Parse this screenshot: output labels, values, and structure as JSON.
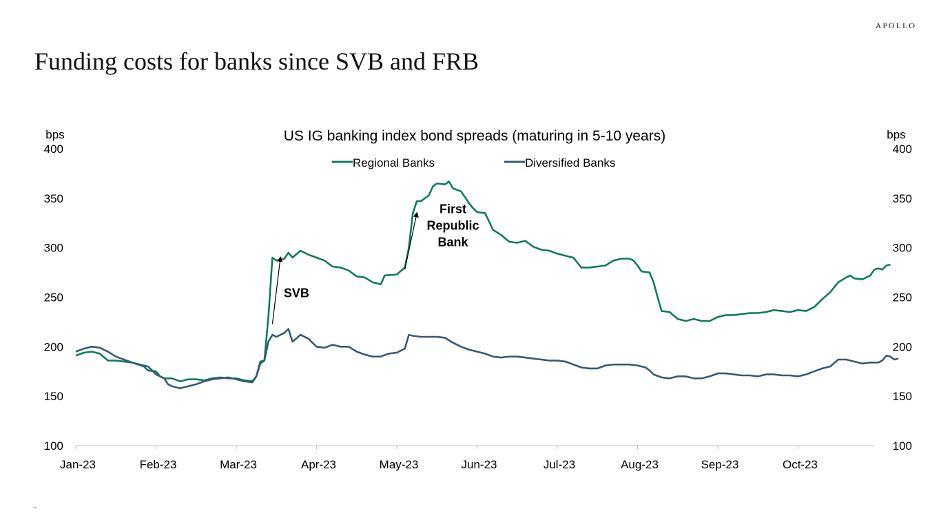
{
  "brand": "APOLLO",
  "page_title": "Funding costs for banks since SVB and FRB",
  "colors": {
    "regional": "#0e7a5f",
    "diversified": "#355a73"
  },
  "chart_data": {
    "type": "line",
    "title": "US IG banking index bond spreads  (maturing in 5-10 years)",
    "ylabel_left": "bps",
    "ylabel_right": "bps",
    "ylim": [
      100,
      400
    ],
    "yticks": [
      100,
      150,
      200,
      250,
      300,
      350,
      400
    ],
    "xlim": [
      0,
      9.95
    ],
    "xticks": [
      {
        "label": "Jan-23",
        "pos": 0
      },
      {
        "label": "Feb-23",
        "pos": 1
      },
      {
        "label": "Mar-23",
        "pos": 2
      },
      {
        "label": "Apr-23",
        "pos": 3
      },
      {
        "label": "May-23",
        "pos": 4
      },
      {
        "label": "Jun-23",
        "pos": 5
      },
      {
        "label": "Jul-23",
        "pos": 6
      },
      {
        "label": "Aug-23",
        "pos": 7
      },
      {
        "label": "Sep-23",
        "pos": 8
      },
      {
        "label": "Oct-23",
        "pos": 9
      }
    ],
    "legend": "top-center",
    "grid": false,
    "series": [
      {
        "name": "Regional Banks",
        "points": [
          [
            0,
            191
          ],
          [
            0.1,
            194
          ],
          [
            0.2,
            195
          ],
          [
            0.3,
            193
          ],
          [
            0.4,
            186
          ],
          [
            0.5,
            186
          ],
          [
            0.6,
            185
          ],
          [
            0.7,
            184
          ],
          [
            0.85,
            180
          ],
          [
            0.9,
            176
          ],
          [
            1.0,
            175
          ],
          [
            1.05,
            170
          ],
          [
            1.1,
            168
          ],
          [
            1.2,
            168
          ],
          [
            1.3,
            165
          ],
          [
            1.4,
            167
          ],
          [
            1.5,
            167
          ],
          [
            1.6,
            166
          ],
          [
            1.7,
            168
          ],
          [
            1.8,
            169
          ],
          [
            1.9,
            168
          ],
          [
            2.0,
            168
          ],
          [
            2.1,
            166
          ],
          [
            2.2,
            165
          ],
          [
            2.25,
            170
          ],
          [
            2.3,
            185
          ],
          [
            2.35,
            186
          ],
          [
            2.4,
            230
          ],
          [
            2.45,
            290
          ],
          [
            2.5,
            287
          ],
          [
            2.6,
            289
          ],
          [
            2.65,
            295
          ],
          [
            2.7,
            290
          ],
          [
            2.8,
            297
          ],
          [
            2.9,
            293
          ],
          [
            3.0,
            290
          ],
          [
            3.1,
            287
          ],
          [
            3.2,
            281
          ],
          [
            3.3,
            280
          ],
          [
            3.4,
            277
          ],
          [
            3.5,
            271
          ],
          [
            3.6,
            270
          ],
          [
            3.7,
            265
          ],
          [
            3.8,
            263
          ],
          [
            3.85,
            272
          ],
          [
            4.0,
            273
          ],
          [
            4.1,
            280
          ],
          [
            4.15,
            300
          ],
          [
            4.2,
            335
          ],
          [
            4.25,
            347
          ],
          [
            4.3,
            347
          ],
          [
            4.4,
            353
          ],
          [
            4.45,
            362
          ],
          [
            4.5,
            365
          ],
          [
            4.6,
            364
          ],
          [
            4.65,
            367
          ],
          [
            4.7,
            360
          ],
          [
            4.8,
            357
          ],
          [
            4.9,
            345
          ],
          [
            4.95,
            340
          ],
          [
            5.0,
            336
          ],
          [
            5.1,
            335
          ],
          [
            5.2,
            318
          ],
          [
            5.3,
            313
          ],
          [
            5.4,
            306
          ],
          [
            5.5,
            305
          ],
          [
            5.6,
            307
          ],
          [
            5.7,
            301
          ],
          [
            5.8,
            298
          ],
          [
            5.9,
            297
          ],
          [
            6.0,
            294
          ],
          [
            6.1,
            292
          ],
          [
            6.2,
            290
          ],
          [
            6.3,
            280
          ],
          [
            6.4,
            280
          ],
          [
            6.5,
            281
          ],
          [
            6.6,
            282
          ],
          [
            6.7,
            287
          ],
          [
            6.8,
            289
          ],
          [
            6.9,
            289
          ],
          [
            6.95,
            287
          ],
          [
            7.0,
            282
          ],
          [
            7.05,
            276
          ],
          [
            7.15,
            275
          ],
          [
            7.2,
            265
          ],
          [
            7.25,
            250
          ],
          [
            7.3,
            236
          ],
          [
            7.4,
            235
          ],
          [
            7.5,
            228
          ],
          [
            7.6,
            226
          ],
          [
            7.7,
            228
          ],
          [
            7.8,
            226
          ],
          [
            7.9,
            226
          ],
          [
            8.0,
            230
          ],
          [
            8.1,
            232
          ],
          [
            8.2,
            232
          ],
          [
            8.3,
            233
          ],
          [
            8.4,
            234
          ],
          [
            8.5,
            234
          ],
          [
            8.6,
            235
          ],
          [
            8.7,
            237
          ],
          [
            8.8,
            236
          ],
          [
            8.9,
            235
          ],
          [
            9.0,
            237
          ],
          [
            9.1,
            236
          ],
          [
            9.2,
            240
          ],
          [
            9.3,
            248
          ],
          [
            9.4,
            255
          ],
          [
            9.5,
            265
          ],
          [
            9.6,
            270
          ],
          [
            9.65,
            272
          ],
          [
            9.7,
            269
          ],
          [
            9.8,
            268
          ],
          [
            9.85,
            270
          ],
          [
            9.9,
            272
          ],
          [
            9.95,
            278
          ],
          [
            10.0,
            279
          ],
          [
            10.05,
            278
          ],
          [
            10.1,
            282
          ],
          [
            10.15,
            283
          ]
        ]
      },
      {
        "name": "Diversified Banks",
        "points": [
          [
            0,
            195
          ],
          [
            0.1,
            198
          ],
          [
            0.2,
            200
          ],
          [
            0.3,
            199
          ],
          [
            0.4,
            195
          ],
          [
            0.5,
            190
          ],
          [
            0.6,
            187
          ],
          [
            0.7,
            184
          ],
          [
            0.8,
            182
          ],
          [
            0.9,
            180
          ],
          [
            0.95,
            176
          ],
          [
            1.0,
            172
          ],
          [
            1.05,
            170
          ],
          [
            1.1,
            168
          ],
          [
            1.15,
            162
          ],
          [
            1.2,
            160
          ],
          [
            1.3,
            158
          ],
          [
            1.4,
            160
          ],
          [
            1.5,
            162
          ],
          [
            1.6,
            165
          ],
          [
            1.7,
            167
          ],
          [
            1.8,
            168
          ],
          [
            1.9,
            169
          ],
          [
            2.0,
            167
          ],
          [
            2.1,
            165
          ],
          [
            2.2,
            164
          ],
          [
            2.25,
            170
          ],
          [
            2.3,
            183
          ],
          [
            2.35,
            186
          ],
          [
            2.4,
            205
          ],
          [
            2.45,
            212
          ],
          [
            2.5,
            210
          ],
          [
            2.6,
            214
          ],
          [
            2.65,
            218
          ],
          [
            2.7,
            205
          ],
          [
            2.8,
            212
          ],
          [
            2.9,
            208
          ],
          [
            3.0,
            200
          ],
          [
            3.1,
            199
          ],
          [
            3.2,
            202
          ],
          [
            3.3,
            200
          ],
          [
            3.4,
            200
          ],
          [
            3.5,
            195
          ],
          [
            3.6,
            192
          ],
          [
            3.7,
            190
          ],
          [
            3.8,
            190
          ],
          [
            3.9,
            193
          ],
          [
            4.0,
            194
          ],
          [
            4.1,
            198
          ],
          [
            4.15,
            212
          ],
          [
            4.2,
            211
          ],
          [
            4.3,
            210
          ],
          [
            4.4,
            210
          ],
          [
            4.5,
            210
          ],
          [
            4.6,
            209
          ],
          [
            4.7,
            204
          ],
          [
            4.8,
            200
          ],
          [
            4.9,
            197
          ],
          [
            5.0,
            195
          ],
          [
            5.1,
            193
          ],
          [
            5.2,
            190
          ],
          [
            5.3,
            189
          ],
          [
            5.4,
            190
          ],
          [
            5.5,
            190
          ],
          [
            5.6,
            189
          ],
          [
            5.7,
            188
          ],
          [
            5.8,
            187
          ],
          [
            5.9,
            186
          ],
          [
            6.0,
            186
          ],
          [
            6.1,
            185
          ],
          [
            6.2,
            182
          ],
          [
            6.3,
            179
          ],
          [
            6.4,
            178
          ],
          [
            6.5,
            178
          ],
          [
            6.6,
            181
          ],
          [
            6.7,
            182
          ],
          [
            6.8,
            182
          ],
          [
            6.9,
            182
          ],
          [
            7.0,
            181
          ],
          [
            7.1,
            179
          ],
          [
            7.15,
            176
          ],
          [
            7.2,
            172
          ],
          [
            7.3,
            169
          ],
          [
            7.4,
            168
          ],
          [
            7.5,
            170
          ],
          [
            7.6,
            170
          ],
          [
            7.7,
            168
          ],
          [
            7.8,
            168
          ],
          [
            7.9,
            170
          ],
          [
            8.0,
            173
          ],
          [
            8.1,
            173
          ],
          [
            8.2,
            172
          ],
          [
            8.3,
            171
          ],
          [
            8.4,
            171
          ],
          [
            8.5,
            170
          ],
          [
            8.6,
            172
          ],
          [
            8.7,
            172
          ],
          [
            8.8,
            171
          ],
          [
            8.9,
            171
          ],
          [
            9.0,
            170
          ],
          [
            9.1,
            172
          ],
          [
            9.2,
            175
          ],
          [
            9.3,
            178
          ],
          [
            9.4,
            180
          ],
          [
            9.5,
            187
          ],
          [
            9.6,
            187
          ],
          [
            9.7,
            185
          ],
          [
            9.8,
            183
          ],
          [
            9.9,
            184
          ],
          [
            10.0,
            184
          ],
          [
            10.05,
            186
          ],
          [
            10.1,
            191
          ],
          [
            10.15,
            190
          ],
          [
            10.2,
            187
          ],
          [
            10.25,
            188
          ]
        ]
      }
    ],
    "annotations": [
      {
        "text": "SVB",
        "x": 2.75,
        "y": 250,
        "arrow_from": [
          2.45,
          223
        ],
        "arrow_to": [
          2.55,
          290
        ]
      },
      {
        "text": "First Republic Bank",
        "lines": [
          "First",
          "Republic",
          "Bank"
        ],
        "x": 4.7,
        "y": 335,
        "arrow_from": [
          4.1,
          278
        ],
        "arrow_to": [
          4.25,
          335
        ]
      }
    ]
  }
}
